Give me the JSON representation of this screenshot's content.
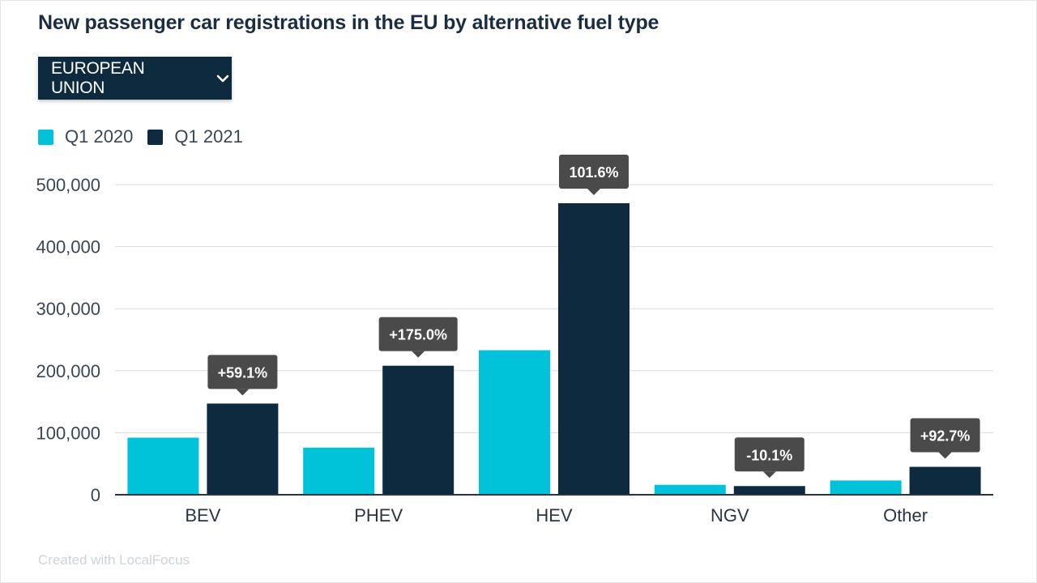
{
  "title": "New passenger car registrations in the EU by alternative fuel type",
  "dropdown": {
    "selected": "EUROPEAN UNION",
    "icon": "chevron-down-icon"
  },
  "legend": [
    {
      "label": "Q1 2020",
      "color": "#00c3da"
    },
    {
      "label": "Q1 2021",
      "color": "#0d2a3f"
    }
  ],
  "footer": "Created with LocalFocus",
  "chart_data": {
    "type": "bar",
    "categories": [
      "BEV",
      "PHEV",
      "HEV",
      "NGV",
      "Other"
    ],
    "series": [
      {
        "name": "Q1 2020",
        "values": [
          92000,
          76000,
          233000,
          16000,
          23000
        ]
      },
      {
        "name": "Q1 2021",
        "values": [
          147000,
          208000,
          470000,
          14000,
          45000
        ]
      }
    ],
    "change_labels": [
      "+59.1%",
      "+175.0%",
      "101.6%",
      "-10.1%",
      "+92.7%"
    ],
    "ylim": [
      0,
      500000
    ],
    "yticks": [
      0,
      100000,
      200000,
      300000,
      400000,
      500000
    ],
    "ytick_labels": [
      "0",
      "100,000",
      "200,000",
      "300,000",
      "400,000",
      "500,000"
    ],
    "grid": true,
    "legend_position": "top-left",
    "colors": {
      "series1": "#00c3da",
      "series2": "#0d2a3f",
      "tooltip": "#4a4a4a"
    }
  }
}
